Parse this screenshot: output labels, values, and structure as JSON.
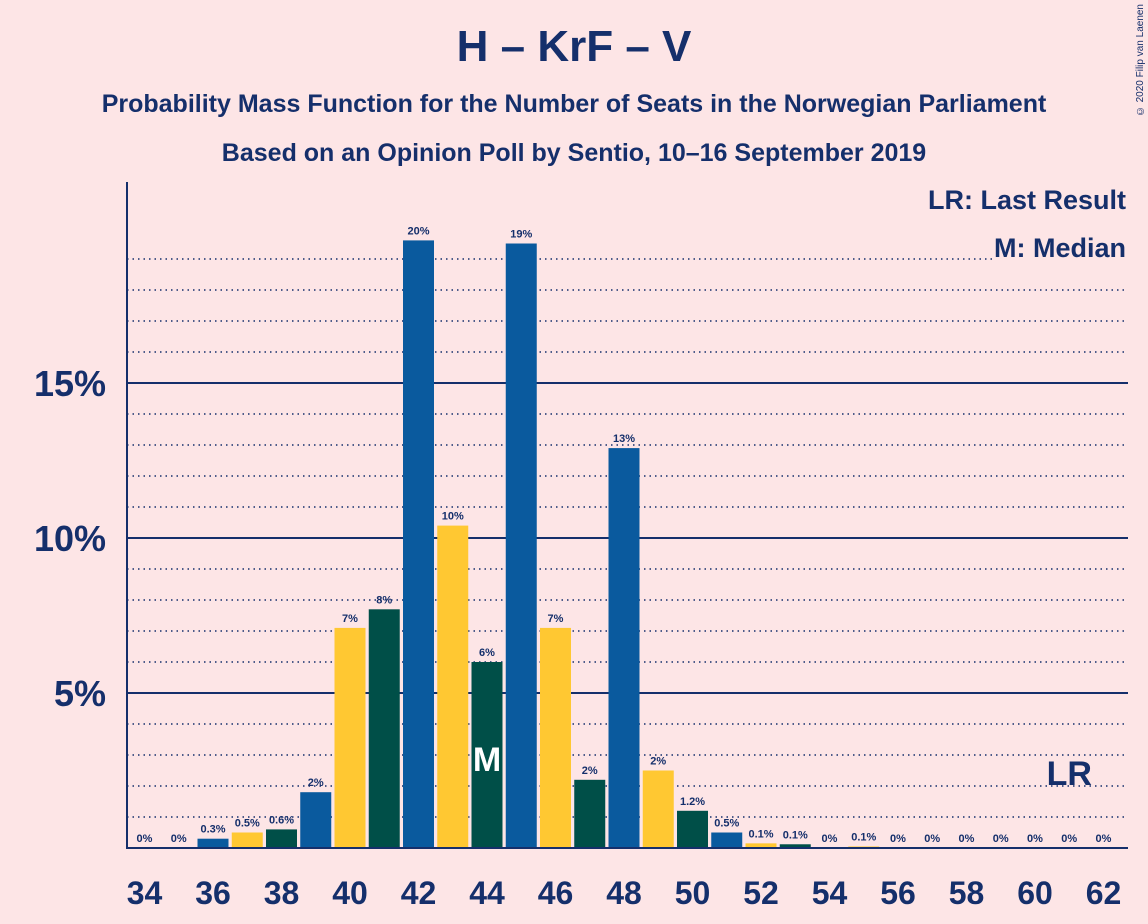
{
  "title": "H – KrF – V",
  "subtitle_1": "Probability Mass Function for the Number of Seats in the Norwegian Parliament",
  "subtitle_2": "Based on an Opinion Poll by Sentio, 10–16 September 2019",
  "copyright": "© 2020 Filip van Laenen",
  "legend": {
    "last_result": "LR: Last Result",
    "median": "M: Median"
  },
  "markers": {
    "median_label": "M",
    "median_seat": 44,
    "last_result_label": "LR",
    "last_result_seat": 61
  },
  "colors": {
    "blue": "#0a5a9e",
    "yellow": "#ffc832",
    "green": "#004f48",
    "axis": "#152f6b",
    "background": "#fde5e6"
  },
  "chart_data": {
    "type": "bar",
    "x": [
      34,
      35,
      36,
      37,
      38,
      39,
      40,
      41,
      42,
      43,
      44,
      45,
      46,
      47,
      48,
      49,
      50,
      51,
      52,
      53,
      54,
      55,
      56,
      57,
      58,
      59,
      60,
      61,
      62
    ],
    "values": [
      0,
      0,
      0.3,
      0.5,
      0.6,
      1.8,
      7.1,
      7.7,
      19.6,
      10.4,
      6.0,
      19.5,
      7.1,
      2.2,
      12.9,
      2.5,
      1.2,
      0.5,
      0.15,
      0.12,
      0,
      0.05,
      0,
      0,
      0,
      0,
      0,
      0,
      0
    ],
    "data_labels": [
      "0%",
      "0%",
      "0.3%",
      "0.5%",
      "0.6%",
      "2%",
      "7%",
      "8%",
      "20%",
      "10%",
      "6%",
      "19%",
      "7%",
      "2%",
      "13%",
      "2%",
      "1.2%",
      "0.5%",
      "0.1%",
      "0.1%",
      "0%",
      "0.1%",
      "0%",
      "0%",
      "0%",
      "0%",
      "0%",
      "0%",
      "0%"
    ],
    "bar_colors": [
      "blue",
      "yellow",
      "blue",
      "yellow",
      "green",
      "blue",
      "yellow",
      "green",
      "blue",
      "yellow",
      "green",
      "blue",
      "yellow",
      "green",
      "blue",
      "yellow",
      "green",
      "blue",
      "yellow",
      "green",
      "blue",
      "yellow",
      "green",
      "blue",
      "yellow",
      "green",
      "blue",
      "yellow",
      "green"
    ],
    "x_tick_labels": [
      "34",
      "36",
      "38",
      "40",
      "42",
      "44",
      "46",
      "48",
      "50",
      "52",
      "54",
      "56",
      "58",
      "60",
      "62"
    ],
    "y_ticks": [
      5,
      10,
      15
    ],
    "y_tick_labels": [
      "5%",
      "10%",
      "15%"
    ],
    "ylim": [
      0,
      21
    ],
    "grid": "dotted minor every 1%, solid major every 5%"
  }
}
